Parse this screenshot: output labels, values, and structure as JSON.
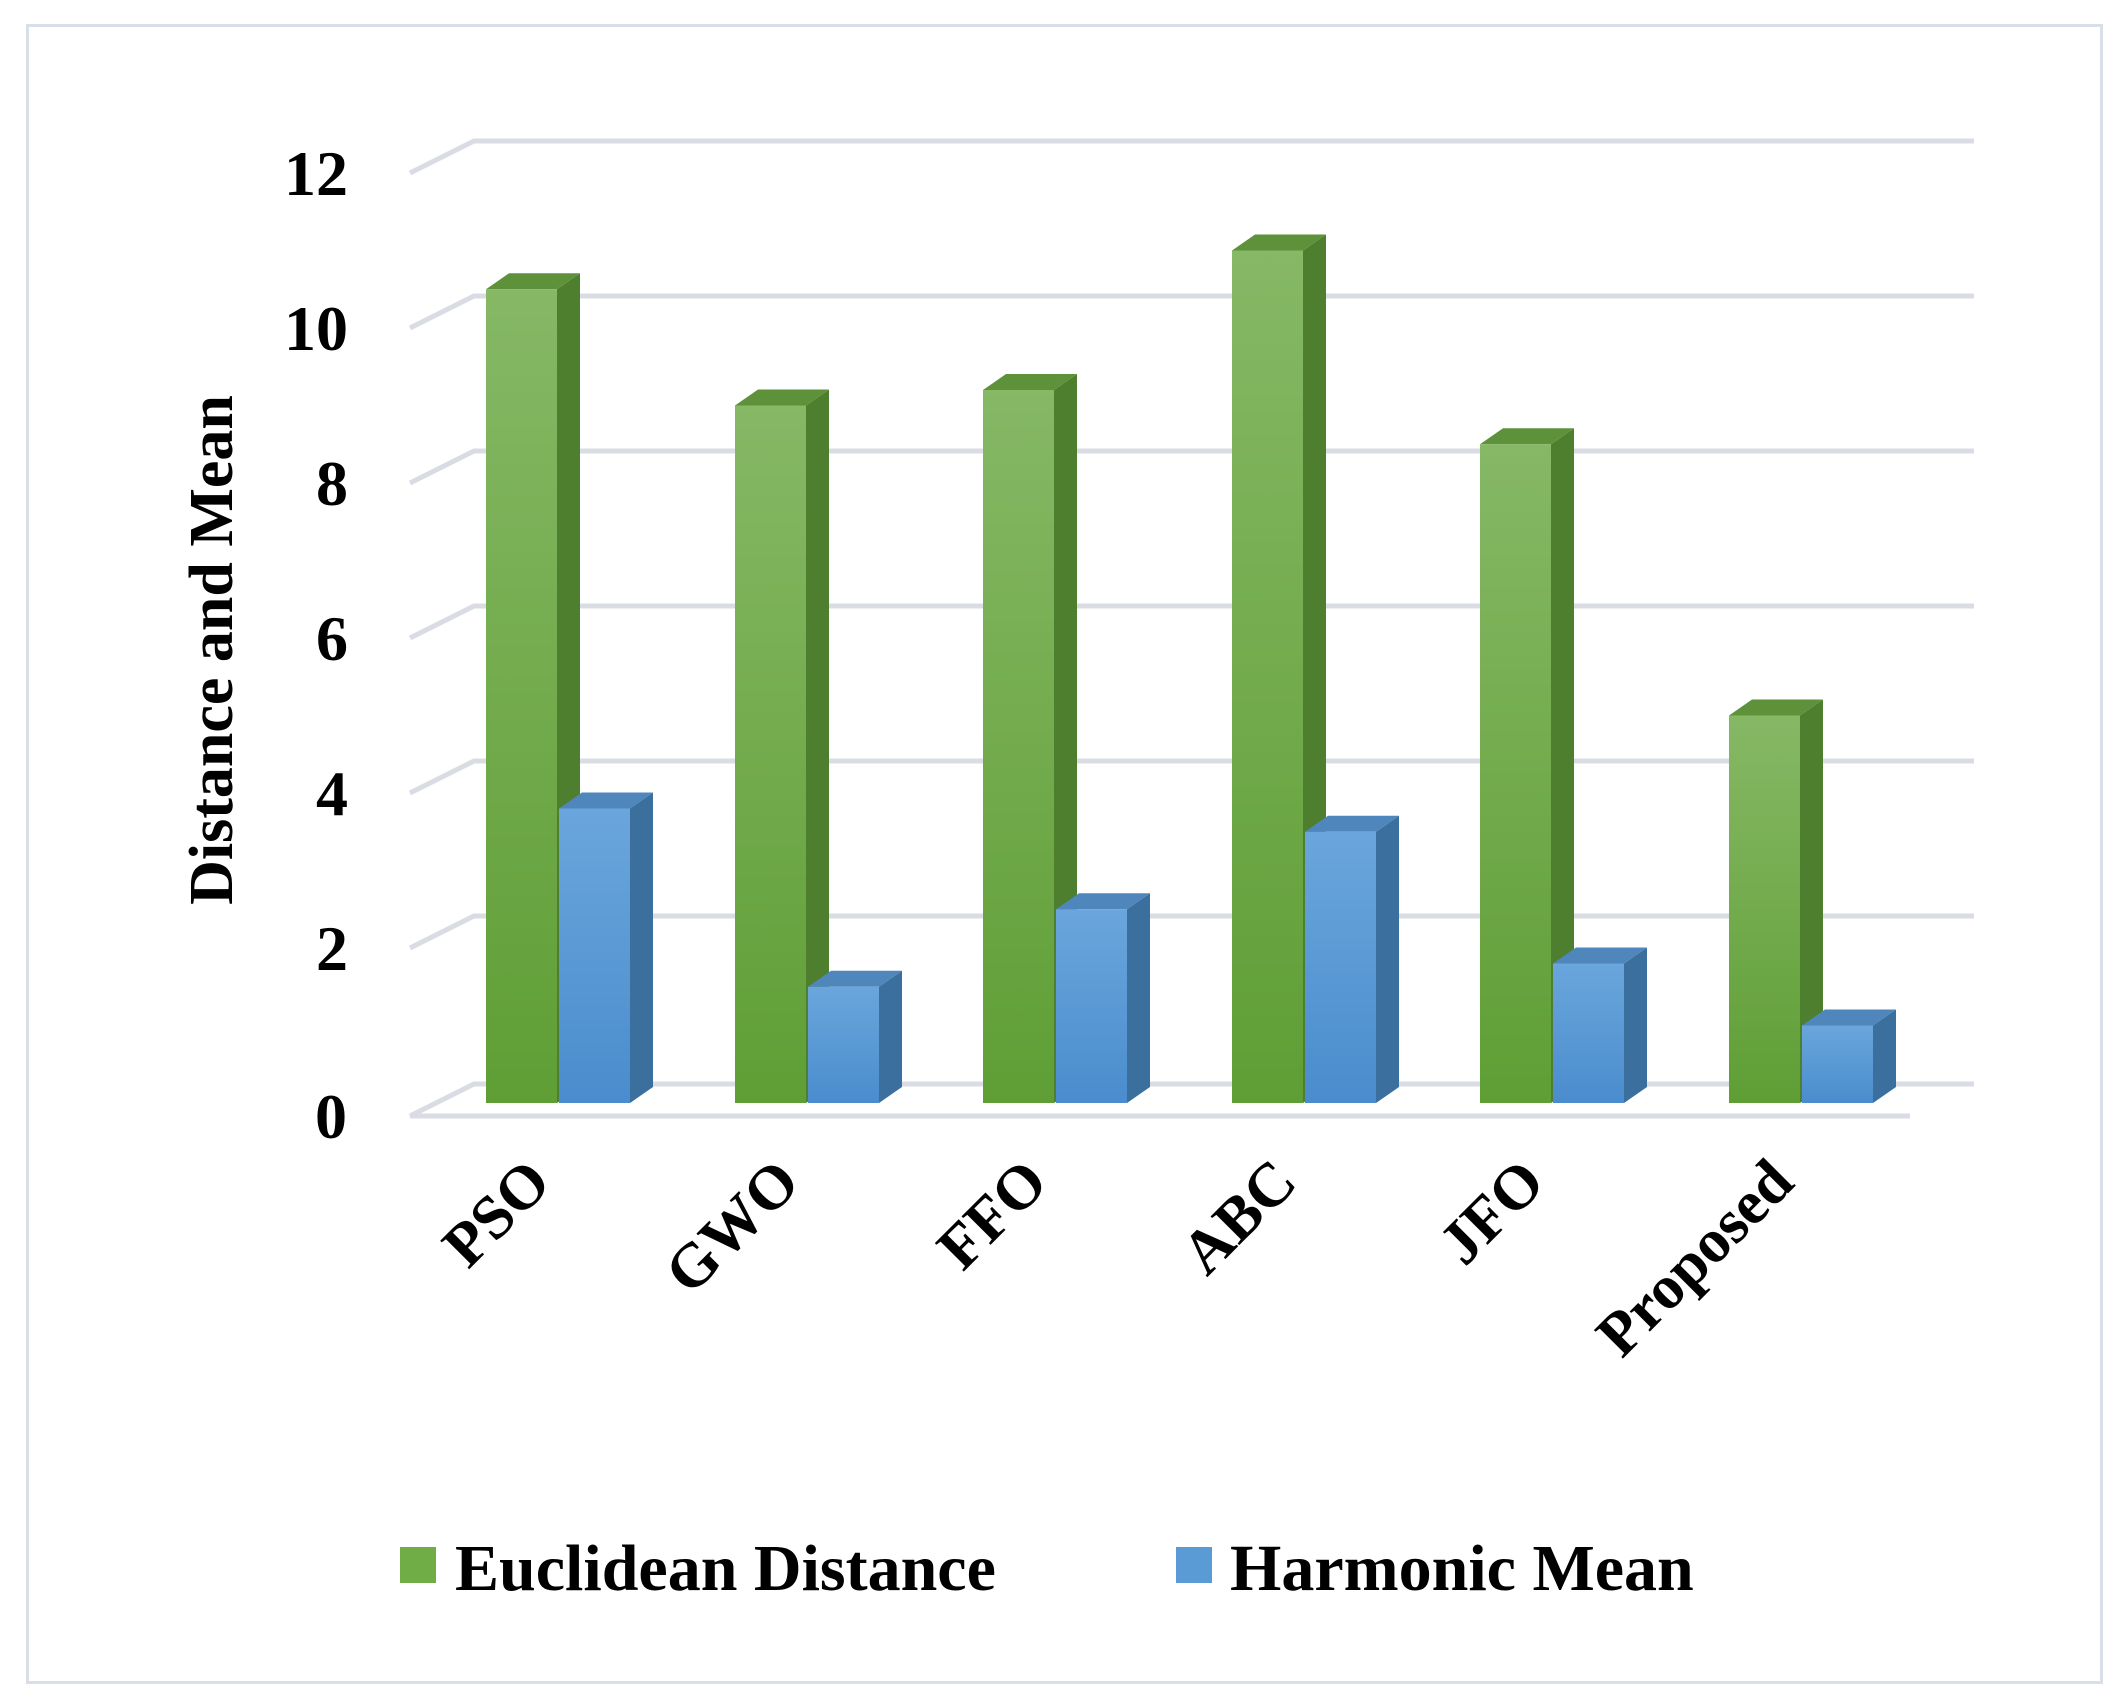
{
  "chart_data": {
    "type": "bar",
    "style": "3d-clustered-column",
    "categories": [
      "PSO",
      "GWO",
      "FFO",
      "ABC",
      "JFO",
      "Proposed"
    ],
    "series": [
      {
        "name": "Euclidean Distance",
        "values": [
          10.5,
          9.0,
          9.2,
          11.0,
          8.5,
          5.0
        ],
        "color": "#70ad47"
      },
      {
        "name": "Harmonic Mean",
        "values": [
          3.8,
          1.5,
          2.5,
          3.5,
          1.8,
          1.0
        ],
        "color": "#5b9bd5"
      }
    ],
    "ylabel": "Distance and Mean",
    "ylim": [
      0,
      12
    ],
    "yticks": [
      0,
      2,
      4,
      6,
      8,
      10,
      12
    ],
    "grid": true,
    "legend": "bottom"
  }
}
